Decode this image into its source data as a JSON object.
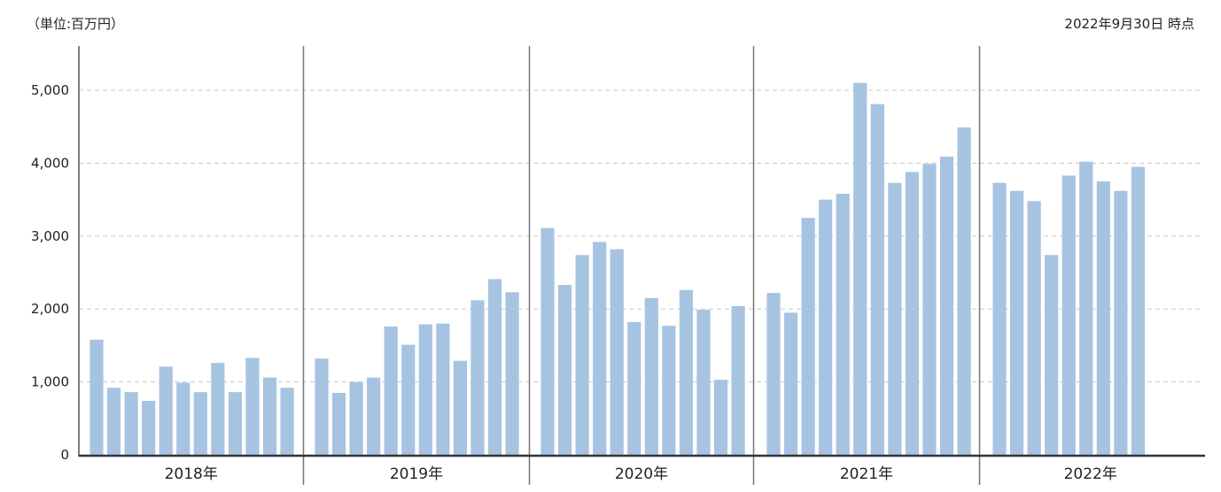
{
  "unit_label": "（単位:百万円）",
  "as_of_label": "2022年9月30日 時点",
  "chart_data": {
    "type": "bar",
    "title": "",
    "xlabel": "",
    "ylabel": "",
    "ylim": [
      0,
      5500
    ],
    "yticks": [
      0,
      1000,
      2000,
      3000,
      4000,
      5000
    ],
    "ytick_labels": [
      "0",
      "1,000",
      "2,000",
      "3,000",
      "4,000",
      "5,000"
    ],
    "grid": "horizontal dashed",
    "bar_color": "#a6c4e2",
    "groups": [
      {
        "label": "2018年",
        "values": [
          1580,
          920,
          860,
          740,
          1210,
          990,
          860,
          1260,
          860,
          1330,
          1060,
          920
        ]
      },
      {
        "label": "2019年",
        "values": [
          1320,
          850,
          1000,
          1060,
          1760,
          1510,
          1790,
          1800,
          1290,
          2120,
          2410,
          2230
        ]
      },
      {
        "label": "2020年",
        "values": [
          3110,
          2330,
          2740,
          2920,
          2820,
          1820,
          2150,
          1770,
          2260,
          1990,
          1030,
          2040
        ]
      },
      {
        "label": "2021年",
        "values": [
          2220,
          1950,
          3250,
          3500,
          3580,
          5100,
          4810,
          3730,
          3880,
          3990,
          4090,
          4490
        ]
      },
      {
        "label": "2022年",
        "values": [
          3730,
          3620,
          3480,
          2740,
          3830,
          4020,
          3750,
          3620,
          3950
        ]
      }
    ]
  }
}
